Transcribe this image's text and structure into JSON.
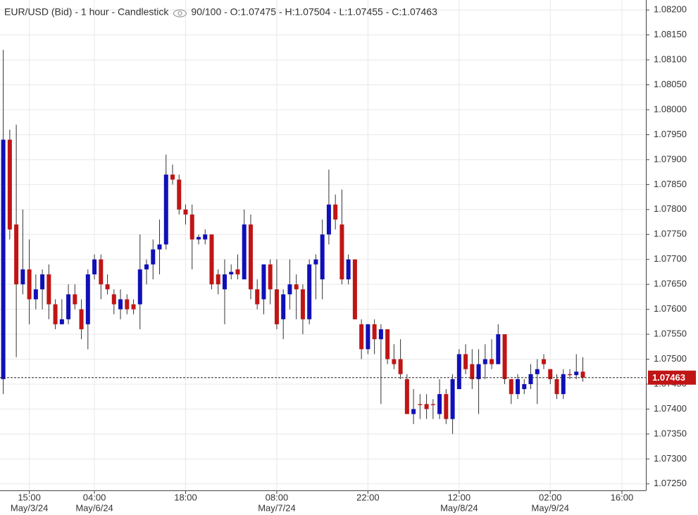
{
  "chart_data": {
    "type": "candlestick",
    "title": "EUR/USD (Bid) - 1 hour - Candlestick",
    "subtitle": "90/100 - O:1.07475 - H:1.07504 - L:1.07455 - C:1.07463",
    "x": [
      0,
      1,
      2,
      3,
      4,
      5,
      6,
      7,
      8,
      9,
      10,
      11,
      12,
      13,
      14,
      15,
      16,
      17,
      18,
      19,
      20,
      21,
      22,
      23,
      24,
      25,
      26,
      27,
      28,
      29,
      30,
      31,
      32,
      33,
      34,
      35,
      36,
      37,
      38,
      39,
      40,
      41,
      42,
      43,
      44,
      45,
      46,
      47,
      48,
      49,
      50,
      51,
      52,
      53,
      54,
      55,
      56,
      57,
      58,
      59,
      60,
      61,
      62,
      63,
      64,
      65,
      66,
      67,
      68,
      69,
      70,
      71,
      72,
      73,
      74,
      75,
      76,
      77,
      78,
      79,
      80,
      81,
      82,
      83,
      84,
      85,
      86,
      87,
      88,
      89
    ],
    "open": [
      1.0746,
      1.0794,
      1.0777,
      1.0765,
      1.0768,
      1.0762,
      1.0764,
      1.0767,
      1.0761,
      1.0757,
      1.0758,
      1.0763,
      1.076,
      1.0757,
      1.0767,
      1.077,
      1.0765,
      1.0763,
      1.076,
      1.0762,
      1.0761,
      1.0761,
      1.0768,
      1.0769,
      1.0772,
      1.0773,
      1.0787,
      1.0786,
      1.078,
      1.0779,
      1.0774,
      1.0774,
      1.0775,
      1.0767,
      1.0764,
      1.0767,
      1.0768,
      1.0766,
      1.0777,
      1.0764,
      1.0762,
      1.0769,
      1.0764,
      1.0758,
      1.0763,
      1.0765,
      1.0764,
      1.0758,
      1.0769,
      1.0766,
      1.0775,
      1.0781,
      1.0777,
      1.0766,
      1.077,
      1.0757,
      1.0752,
      1.0757,
      1.0754,
      1.0756,
      1.075,
      1.075,
      1.0746,
      1.0739,
      1.0741,
      1.0741,
      1.0741,
      1.0739,
      1.0743,
      1.0738,
      1.0744,
      1.0751,
      1.0749,
      1.0746,
      1.0749,
      1.075,
      1.0749,
      1.0755,
      1.0746,
      1.0743,
      1.0744,
      1.0745,
      1.0747,
      1.075,
      1.0748,
      1.0746,
      1.0743,
      1.0747,
      1.07468,
      1.07475
    ],
    "high": [
      1.0812,
      1.0796,
      1.0797,
      1.078,
      1.0774,
      1.0767,
      1.0768,
      1.0769,
      1.0762,
      1.0762,
      1.0765,
      1.0765,
      1.0762,
      1.0768,
      1.0771,
      1.0771,
      1.0767,
      1.0764,
      1.0764,
      1.0763,
      1.0762,
      1.0775,
      1.077,
      1.0774,
      1.0778,
      1.0791,
      1.0789,
      1.0787,
      1.0781,
      1.0781,
      1.0775,
      1.0776,
      1.0775,
      1.0768,
      1.077,
      1.0769,
      1.0771,
      1.078,
      1.0779,
      1.0766,
      1.0769,
      1.077,
      1.077,
      1.0764,
      1.077,
      1.0767,
      1.0765,
      1.077,
      1.0771,
      1.0778,
      1.0788,
      1.0783,
      1.0784,
      1.0771,
      1.077,
      1.0758,
      1.0757,
      1.0758,
      1.0757,
      1.0756,
      1.0753,
      1.0754,
      1.0747,
      1.0744,
      1.0743,
      1.0743,
      1.0742,
      1.0746,
      1.0744,
      1.0747,
      1.0752,
      1.0753,
      1.0752,
      1.0752,
      1.0753,
      1.0754,
      1.0757,
      1.0755,
      1.0746,
      1.0747,
      1.0746,
      1.0749,
      1.075,
      1.0751,
      1.0748,
      1.0747,
      1.0748,
      1.0748,
      1.0751,
      1.07504
    ],
    "low": [
      1.0743,
      1.0774,
      1.07504,
      1.0763,
      1.0757,
      1.076,
      1.076,
      1.0758,
      1.0756,
      1.0757,
      1.0757,
      1.076,
      1.0754,
      1.0752,
      1.0766,
      1.0762,
      1.0763,
      1.0759,
      1.0758,
      1.0759,
      1.0759,
      1.0756,
      1.0765,
      1.0766,
      1.0767,
      1.0772,
      1.0785,
      1.0779,
      1.0777,
      1.0768,
      1.0773,
      1.0773,
      1.0764,
      1.0763,
      1.0757,
      1.0766,
      1.0766,
      1.0766,
      1.0762,
      1.076,
      1.0759,
      1.0761,
      1.0756,
      1.0754,
      1.076,
      1.0758,
      1.0755,
      1.0757,
      1.0762,
      1.0762,
      1.0773,
      1.0776,
      1.0765,
      1.0765,
      1.0758,
      1.075,
      1.0751,
      1.0751,
      1.0741,
      1.0749,
      1.0748,
      1.0746,
      1.0739,
      1.0737,
      1.0738,
      1.0738,
      1.0738,
      1.0738,
      1.0737,
      1.0735,
      1.0744,
      1.0747,
      1.0744,
      1.0739,
      1.0746,
      1.0748,
      1.0749,
      1.0745,
      1.0741,
      1.0742,
      1.0743,
      1.0744,
      1.0741,
      1.0748,
      1.0745,
      1.0742,
      1.0742,
      1.0746,
      1.0746,
      1.07455
    ],
    "close": [
      1.0794,
      1.0776,
      1.0765,
      1.0768,
      1.0762,
      1.0764,
      1.0767,
      1.0761,
      1.0757,
      1.0758,
      1.0763,
      1.0761,
      1.0756,
      1.0767,
      1.077,
      1.0765,
      1.0764,
      1.0761,
      1.0762,
      1.076,
      1.076,
      1.0768,
      1.0769,
      1.0772,
      1.0773,
      1.0787,
      1.0786,
      1.078,
      1.0779,
      1.0774,
      1.07745,
      1.0775,
      1.0765,
      1.0765,
      1.0767,
      1.07675,
      1.0767,
      1.0777,
      1.0764,
      1.0761,
      1.0769,
      1.0764,
      1.0757,
      1.0763,
      1.0765,
      1.0764,
      1.0758,
      1.0769,
      1.077,
      1.0775,
      1.0781,
      1.0778,
      1.0766,
      1.077,
      1.0758,
      1.0752,
      1.0757,
      1.0754,
      1.0756,
      1.075,
      1.0749,
      1.0747,
      1.0739,
      1.074,
      1.07408,
      1.074,
      1.07408,
      1.0743,
      1.0738,
      1.0746,
      1.0751,
      1.0748,
      1.0746,
      1.0749,
      1.075,
      1.0749,
      1.0755,
      1.0746,
      1.0743,
      1.0746,
      1.0745,
      1.0747,
      1.0748,
      1.0749,
      1.0746,
      1.0743,
      1.0747,
      1.07468,
      1.07475,
      1.07463
    ],
    "up_color": "#1010b8",
    "down_color": "#c01515",
    "xlim": [
      -0.5,
      98.68
    ],
    "ylim": [
      1.07237,
      1.0822
    ],
    "xticks": [
      {
        "value": 4,
        "label": "15:00"
      },
      {
        "value": 14,
        "label": "04:00"
      },
      {
        "value": 28,
        "label": "18:00"
      },
      {
        "value": 42,
        "label": "08:00"
      },
      {
        "value": 56,
        "label": "22:00"
      },
      {
        "value": 70,
        "label": "12:00"
      },
      {
        "value": 84,
        "label": "02:00"
      },
      {
        "value": 95,
        "label": "16:00"
      }
    ],
    "x_date_labels": [
      {
        "value": 4,
        "label": "May/3/24"
      },
      {
        "value": 14,
        "label": "May/6/24"
      },
      {
        "value": 42,
        "label": "May/7/24"
      },
      {
        "value": 70,
        "label": "May/8/24"
      },
      {
        "value": 84,
        "label": "May/9/24"
      }
    ],
    "yticks": [
      {
        "value": 1.0725,
        "label": "1.07250"
      },
      {
        "value": 1.073,
        "label": "1.07300"
      },
      {
        "value": 1.0735,
        "label": "1.07350"
      },
      {
        "value": 1.074,
        "label": "1.07400"
      },
      {
        "value": 1.0745,
        "label": "1.07450"
      },
      {
        "value": 1.075,
        "label": "1.07500"
      },
      {
        "value": 1.0755,
        "label": "1.07550"
      },
      {
        "value": 1.076,
        "label": "1.07600"
      },
      {
        "value": 1.0765,
        "label": "1.07650"
      },
      {
        "value": 1.077,
        "label": "1.07700"
      },
      {
        "value": 1.0775,
        "label": "1.07750"
      },
      {
        "value": 1.078,
        "label": "1.07800"
      },
      {
        "value": 1.0785,
        "label": "1.07850"
      },
      {
        "value": 1.079,
        "label": "1.07900"
      },
      {
        "value": 1.0795,
        "label": "1.07950"
      },
      {
        "value": 1.08,
        "label": "1.08000"
      },
      {
        "value": 1.0805,
        "label": "1.08050"
      },
      {
        "value": 1.081,
        "label": "1.08100"
      },
      {
        "value": 1.0815,
        "label": "1.08150"
      },
      {
        "value": 1.082,
        "label": "1.08200"
      }
    ],
    "current_price": 1.07463,
    "grid": true
  }
}
